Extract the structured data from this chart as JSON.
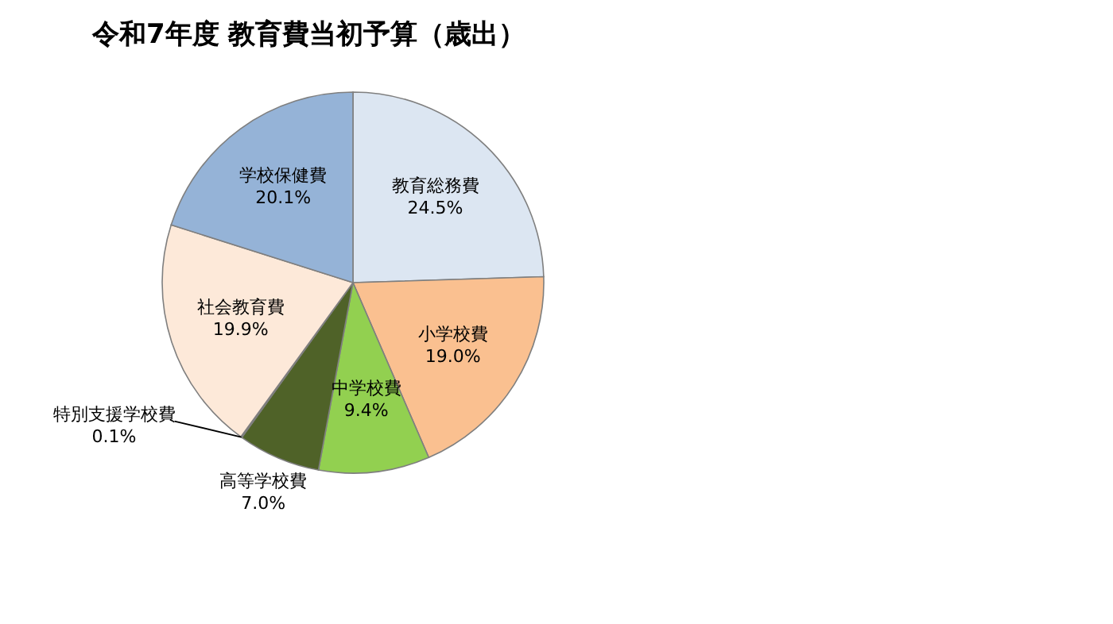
{
  "chart_data": {
    "type": "pie",
    "title": "令和7年度  教育費当初予算（歳出）",
    "categories": [
      "教育総務費",
      "小学校費",
      "中学校費",
      "高等学校費",
      "特別支援学校費",
      "社会教育費",
      "学校保健費"
    ],
    "values": [
      24.5,
      19.0,
      9.4,
      7.0,
      0.1,
      19.9,
      20.1
    ],
    "value_labels": [
      "24.5%",
      "19.0%",
      "9.4%",
      "7.0%",
      "0.1%",
      "19.9%",
      "20.1%"
    ],
    "colors": [
      "#dce6f2",
      "#fac090",
      "#92d050",
      "#4f6228",
      "#c0504d",
      "#fde9d9",
      "#95b3d7"
    ]
  }
}
